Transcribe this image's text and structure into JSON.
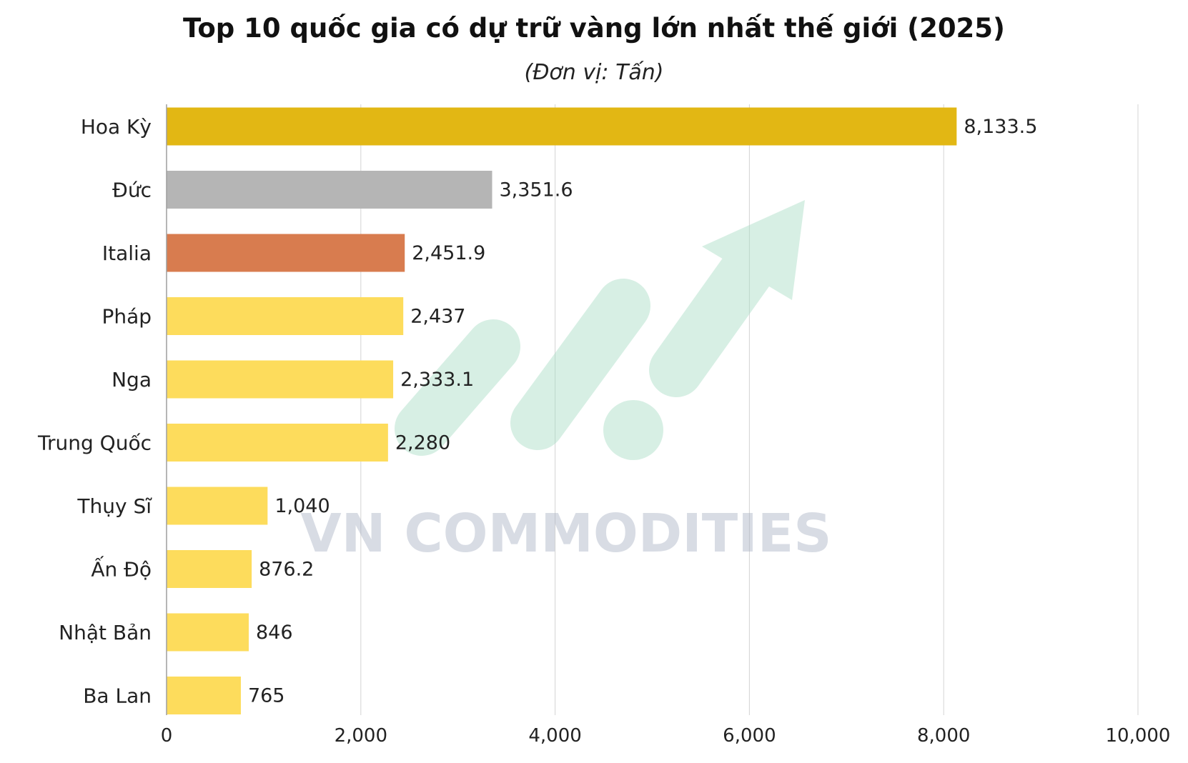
{
  "chart_data": {
    "type": "bar",
    "orientation": "horizontal",
    "title": "Top 10 quốc gia có dự trữ vàng lớn nhất thế giới (2025)",
    "subtitle": "(Đơn vị: Tấn)",
    "categories": [
      "Hoa Kỳ",
      "Đức",
      "Italia",
      "Pháp",
      "Nga",
      "Trung Quốc",
      "Thụy Sĩ",
      "Ấn Độ",
      "Nhật Bản",
      "Ba Lan"
    ],
    "values": [
      8133.5,
      3351.6,
      2451.9,
      2437,
      2333.1,
      2280,
      1040,
      876.2,
      846,
      765
    ],
    "value_labels": [
      "8,133.5",
      "3,351.6",
      "2,451.9",
      "2,437",
      "2,333.1",
      "2,280",
      "1,040",
      "876.2",
      "846",
      "765"
    ],
    "bar_colors": [
      "#E2B714",
      "#B5B5B5",
      "#D87C4F",
      "#FDDC5C",
      "#FDDC5C",
      "#FDDC5C",
      "#FDDC5C",
      "#FDDC5C",
      "#FDDC5C",
      "#FDDC5C"
    ],
    "xlim": [
      0,
      10000
    ],
    "xticks": [
      0,
      2000,
      4000,
      6000,
      8000,
      10000
    ],
    "xtick_labels": [
      "0",
      "2,000",
      "4,000",
      "6,000",
      "8,000",
      "10,000"
    ],
    "xlabel": "",
    "ylabel": "",
    "grid": "vertical",
    "legend": "none",
    "watermark": {
      "text": "VN COMMODITIES",
      "icon": "rising-arrow-logo",
      "color": "#A7DCC4",
      "text_color": "#C9CFDA"
    }
  }
}
